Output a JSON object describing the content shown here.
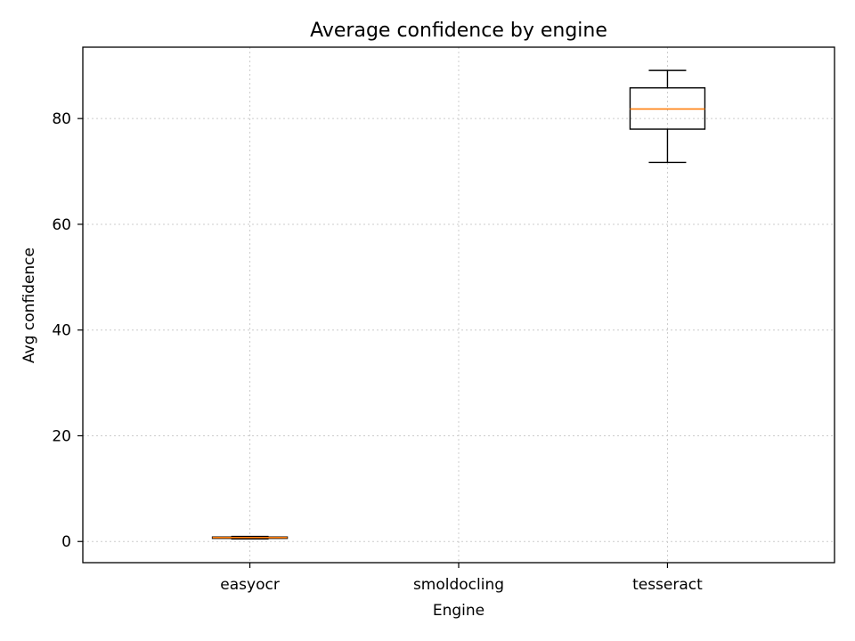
{
  "chart_data": {
    "type": "box",
    "title": "Average confidence by engine",
    "xlabel": "Engine",
    "ylabel": "Avg confidence",
    "categories": [
      "easyocr",
      "smoldocling",
      "tesseract"
    ],
    "ylim": [
      -4,
      93.5
    ],
    "yticks": [
      0,
      20,
      40,
      60,
      80
    ],
    "grid": true,
    "boxes": [
      {
        "category": "easyocr",
        "whisker_low": 0.5,
        "q1": 0.6,
        "median": 0.75,
        "q3": 0.85,
        "whisker_high": 0.95
      },
      {
        "category": "smoldocling",
        "whisker_low": null,
        "q1": null,
        "median": null,
        "q3": null,
        "whisker_high": null
      },
      {
        "category": "tesseract",
        "whisker_low": 71.7,
        "q1": 78.0,
        "median": 81.8,
        "q3": 85.8,
        "whisker_high": 89.1
      }
    ],
    "colors": {
      "box": "#000000",
      "median": "#ff7f0e",
      "grid": "#cccccc"
    }
  }
}
